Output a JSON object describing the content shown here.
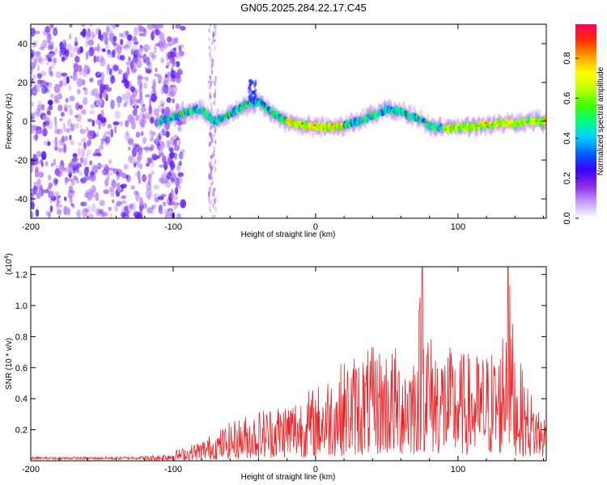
{
  "title": "GN05.2025.284.22.17.C45",
  "chart_data": [
    {
      "type": "heatmap",
      "name": "spectrogram",
      "xlabel": "Height of straight line (km)",
      "ylabel": "Frequency (Hz)",
      "xlim": [
        -200,
        162
      ],
      "ylim": [
        -50,
        50
      ],
      "xticks": [
        "-200",
        "-100",
        "0",
        "100"
      ],
      "xtick_values": [
        -200,
        -100,
        0,
        100
      ],
      "yticks": [
        "40",
        "20",
        "0",
        "-20",
        "-40"
      ],
      "ytick_values": [
        40,
        20,
        0,
        -20,
        -40
      ],
      "noise_region_x": [
        -200,
        -105
      ],
      "noise_column_x": [
        -75,
        -70
      ],
      "signal_ridge": {
        "x": [
          -110,
          -100,
          -90,
          -80,
          -75,
          -70,
          -60,
          -50,
          -40,
          -30,
          -20,
          -10,
          0,
          10,
          20,
          30,
          40,
          50,
          60,
          70,
          80,
          90,
          100,
          110,
          120,
          130,
          140,
          150,
          160
        ],
        "freq_hz": [
          0,
          2,
          5,
          6,
          2,
          0,
          4,
          8,
          10,
          4,
          0,
          -2,
          -3,
          -3,
          -2,
          0,
          3,
          6,
          5,
          2,
          -2,
          -4,
          -3,
          -3,
          -2,
          -1,
          -1,
          0,
          0
        ],
        "peak_x": [
          -45,
          -42
        ],
        "peak_freq_hz": [
          15,
          20
        ]
      },
      "colorbar": {
        "label": "Normalized spectral amplitude",
        "ticks": [
          "0.0",
          "0.2",
          "0.4",
          "0.6",
          "0.8"
        ],
        "tick_values": [
          0.0,
          0.2,
          0.4,
          0.6,
          0.8
        ],
        "range": [
          0,
          0.97
        ],
        "colors": [
          "#ffffff",
          "#c49cff",
          "#8a2be2",
          "#3a00ff",
          "#0060ff",
          "#00d0ff",
          "#00ff80",
          "#40ff00",
          "#c0ff00",
          "#ffff00",
          "#ffa000",
          "#ff3000",
          "#ff0060"
        ]
      }
    },
    {
      "type": "line",
      "name": "snr",
      "xlabel": "Height of straight line (km)",
      "ylabel": "SNR (10 * v/v)",
      "yscale_label": "(x10",
      "yscale_exp": "4",
      "yscale_close": ")",
      "xlim": [
        -200,
        162
      ],
      "ylim": [
        0,
        12500
      ],
      "xticks": [
        "-200",
        "-100",
        "0",
        "100"
      ],
      "xtick_values": [
        -200,
        -100,
        0,
        100
      ],
      "yticks": [
        "0.2",
        "0.4",
        "0.6",
        "0.8",
        "1.0",
        "1.2"
      ],
      "ytick_values": [
        2000,
        4000,
        6000,
        8000,
        10000,
        12000
      ],
      "series": [
        {
          "name": "SNR",
          "color": "#e8262a",
          "x": [
            -200,
            -180,
            -160,
            -140,
            -120,
            -110,
            -100,
            -90,
            -80,
            -70,
            -60,
            -50,
            -40,
            -30,
            -20,
            -10,
            0,
            10,
            20,
            30,
            40,
            50,
            60,
            70,
            75,
            80,
            90,
            100,
            110,
            120,
            130,
            135,
            140,
            150,
            160
          ],
          "y": [
            250,
            250,
            250,
            250,
            300,
            400,
            600,
            900,
            1300,
            1800,
            2400,
            2800,
            3200,
            3500,
            3800,
            4200,
            4600,
            5500,
            6200,
            6800,
            7000,
            7200,
            7000,
            7300,
            12500,
            8000,
            7200,
            6800,
            6600,
            6800,
            7200,
            12500,
            7000,
            4500,
            3000
          ]
        }
      ]
    }
  ]
}
